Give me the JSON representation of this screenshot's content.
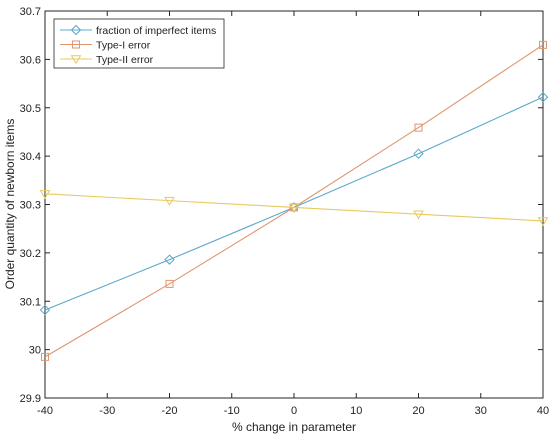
{
  "chart_data": {
    "type": "line",
    "xlabel": "% change in parameter",
    "ylabel": "Order quantity of newborn items",
    "xlim": [
      -40,
      40
    ],
    "ylim": [
      29.9,
      30.7
    ],
    "xticks": [
      -40,
      -30,
      -20,
      -10,
      0,
      10,
      20,
      30,
      40
    ],
    "yticks": [
      29.9,
      30,
      30.1,
      30.2,
      30.3,
      30.4,
      30.5,
      30.6,
      30.7
    ],
    "x": [
      -40,
      -20,
      0,
      20,
      40
    ],
    "grid": false,
    "legend_position": "top-left",
    "series": [
      {
        "name": "fraction of imperfect items",
        "values": [
          30.082,
          30.186,
          30.294,
          30.405,
          30.522
        ],
        "color": "#5aa8c8",
        "marker": "diamond"
      },
      {
        "name": "Type-I error",
        "values": [
          29.985,
          30.136,
          30.294,
          30.459,
          30.63
        ],
        "color": "#e0956e",
        "marker": "square"
      },
      {
        "name": "Type-II error",
        "values": [
          30.322,
          30.308,
          30.294,
          30.28,
          30.266
        ],
        "color": "#e8c95c",
        "marker": "triangle-down"
      }
    ]
  }
}
